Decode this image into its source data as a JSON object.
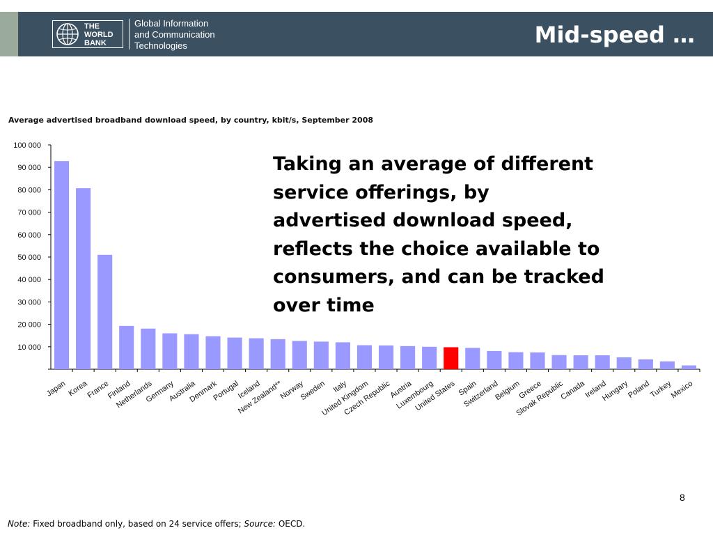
{
  "header": {
    "logo_lines": [
      "THE",
      "WORLD",
      "BANK"
    ],
    "unit_lines": [
      "Global Information",
      "and Communication",
      "Technologies"
    ],
    "slide_title": "Mid-speed …"
  },
  "callout": {
    "lines": [
      "Taking an average of different",
      "service offerings, by",
      "advertised download speed,",
      "reflects the choice available to",
      "consumers, and can be tracked",
      "over time"
    ]
  },
  "page_number": "8",
  "footnote": {
    "note_label": "Note:",
    "note_text": " Fixed broadband only, based on 24 service offers; ",
    "source_label": "Source:",
    "source_text": " OECD."
  },
  "colors": {
    "bar": "#9999ff",
    "highlight": "#ff0000",
    "header_bg": "#3b5060"
  },
  "chart_data": {
    "type": "bar",
    "title": "Average advertised broadband download speed, by country, kbit/s, September 2008",
    "ylim": [
      0,
      100000
    ],
    "yticks": [
      "100 000",
      "90 000",
      "80 000",
      "70 000",
      "60 000",
      "50 000",
      "40 000",
      "30 000",
      "20 000",
      "10 000"
    ],
    "ytick_values": [
      100000,
      90000,
      80000,
      70000,
      60000,
      50000,
      40000,
      30000,
      20000,
      10000
    ],
    "grid": false,
    "highlight": "United States",
    "categories": [
      "Japan",
      "Korea",
      "France",
      "Finland",
      "Netherlands",
      "Germany",
      "Australia",
      "Denmark",
      "Portugal",
      "Iceland",
      "New Zealand**",
      "Norway",
      "Sweden",
      "Italy",
      "United Kingdom",
      "Czech Republic",
      "Austria",
      "Luxembourg",
      "United States",
      "Spain",
      "Switzerland",
      "Belgium",
      "Greece",
      "Slovak Republic",
      "Canada",
      "Ireland",
      "Hungary",
      "Poland",
      "Turkey",
      "Mexico"
    ],
    "values": [
      92800,
      80700,
      51000,
      19300,
      18100,
      16000,
      15600,
      14700,
      14100,
      13800,
      13400,
      12600,
      12300,
      12000,
      10700,
      10600,
      10300,
      10000,
      9800,
      9500,
      8100,
      7600,
      7500,
      6300,
      6200,
      6200,
      5300,
      4400,
      3500,
      1700
    ]
  }
}
